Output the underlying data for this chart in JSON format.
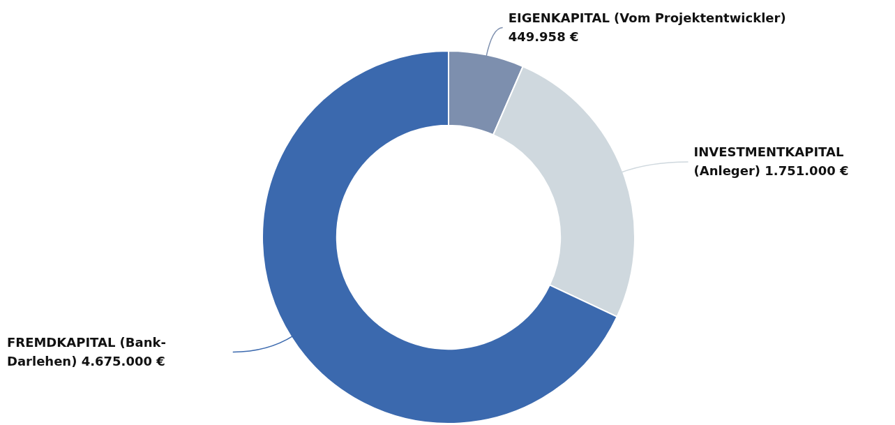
{
  "chart_data": {
    "type": "donut",
    "categories": [
      "EIGENKAPITAL (Vom Projektentwickler)",
      "INVESTMENTKAPITAL (Anleger)",
      "FREMDKAPITAL (Bank-Darlehen)"
    ],
    "values": [
      449958,
      1751000,
      4675000
    ],
    "value_labels": [
      "449.958 €",
      "1.751.000 €",
      "4.675.000 €"
    ],
    "colors": [
      "#7d8fae",
      "#cfd8de",
      "#3b69ae"
    ],
    "legend": false
  }
}
